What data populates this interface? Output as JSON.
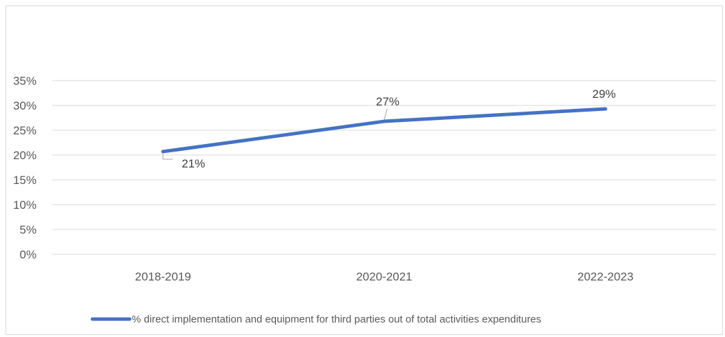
{
  "chart_data": {
    "type": "line",
    "categories": [
      "2018-2019",
      "2020-2021",
      "2022-2023"
    ],
    "series": [
      {
        "name": "% direct implementation and equipment for third parties out of total activities expenditures",
        "values": [
          20.7,
          26.8,
          29.3
        ],
        "labels": [
          "21%",
          "27%",
          "29%"
        ],
        "color": "#4472C4"
      }
    ],
    "ylim": [
      0,
      35
    ],
    "yticks": [
      0,
      5,
      10,
      15,
      20,
      25,
      30,
      35
    ],
    "ytick_labels": [
      "0%",
      "5%",
      "10%",
      "15%",
      "20%",
      "25%",
      "30%",
      "35%"
    ],
    "grid": true,
    "legend_position": "bottom",
    "title": "",
    "xlabel": "",
    "ylabel": ""
  }
}
